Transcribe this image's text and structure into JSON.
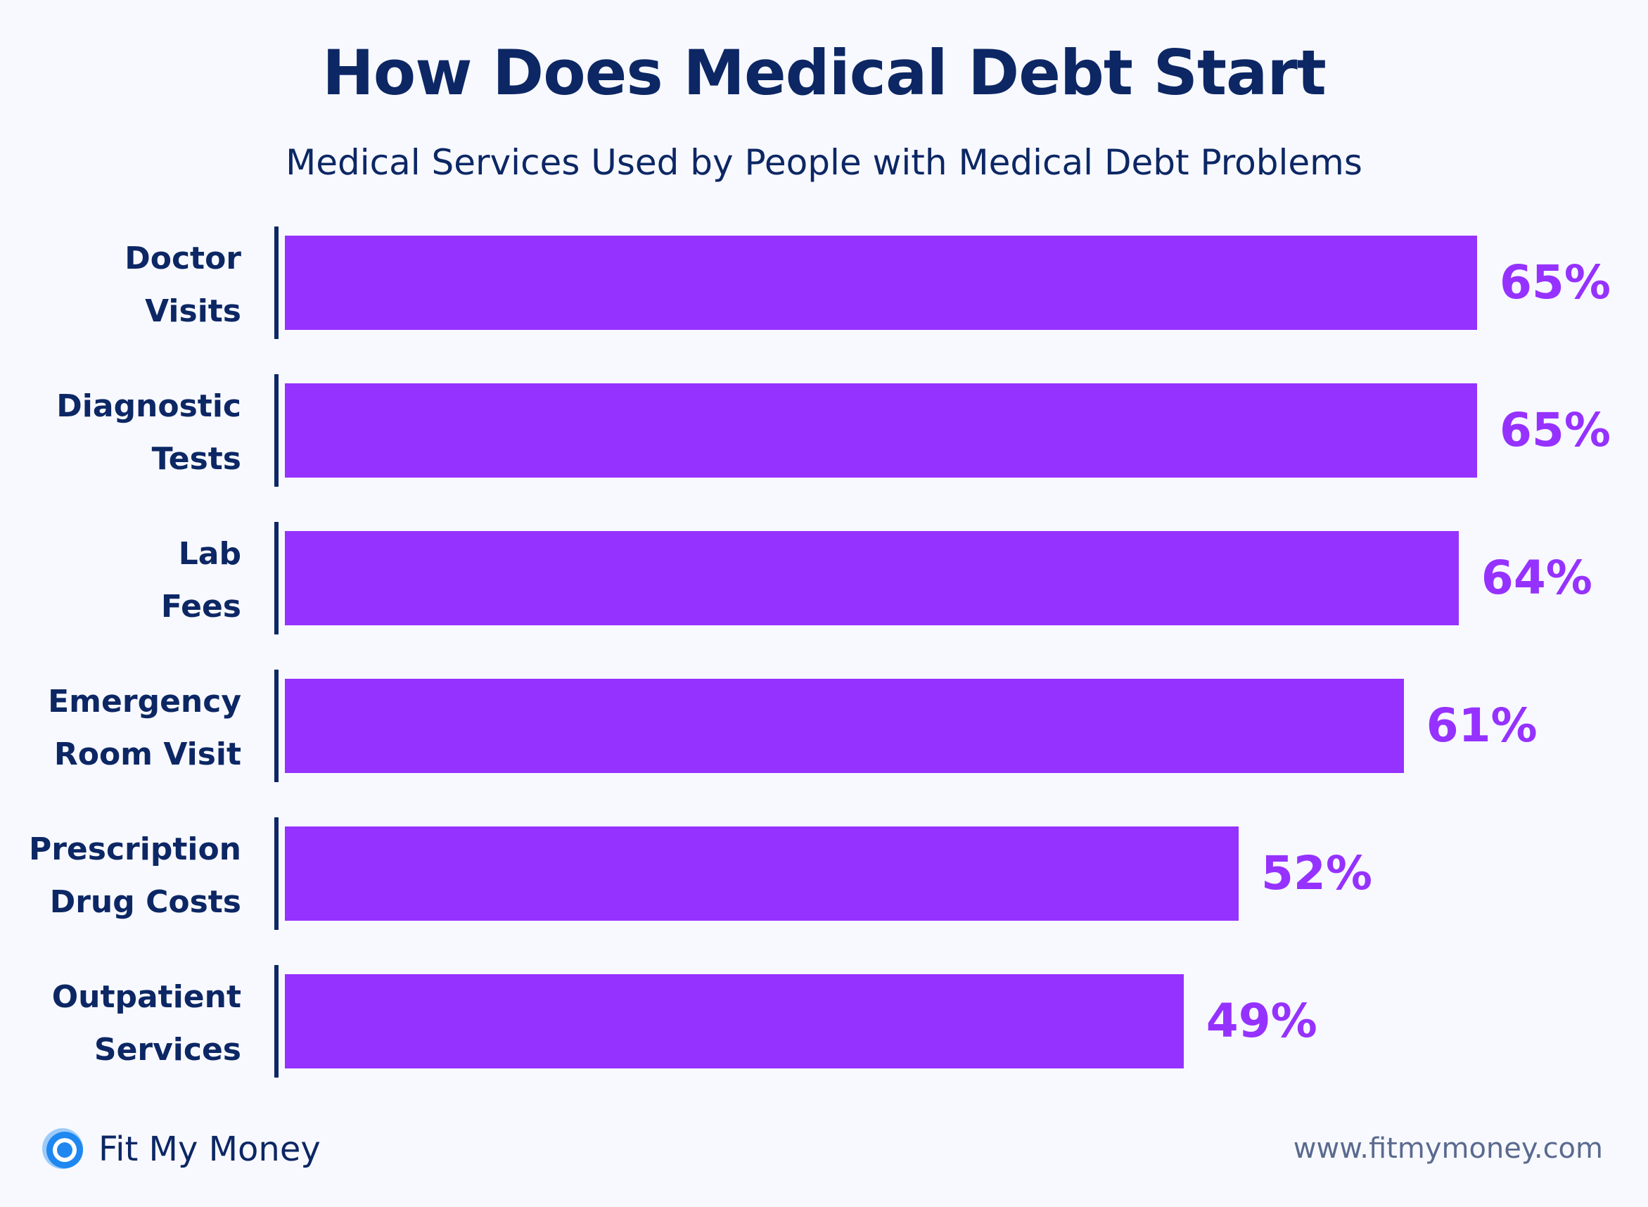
{
  "chart_data": {
    "type": "bar",
    "orientation": "horizontal",
    "title": "How Does Medical Debt Start",
    "subtitle": "Medical Services Used by People with Medical Debt Problems",
    "categories": [
      [
        "Doctor",
        "Visits"
      ],
      [
        "Diagnostic",
        "Tests"
      ],
      [
        "Lab",
        "Fees"
      ],
      [
        "Emergency",
        "Room Visit"
      ],
      [
        "Prescription",
        "Drug Costs"
      ],
      [
        "Outpatient",
        "Services"
      ]
    ],
    "values": [
      65,
      65,
      64,
      61,
      52,
      49
    ],
    "value_labels": [
      "65%",
      "65%",
      "64%",
      "61%",
      "52%",
      "49%"
    ],
    "unit": "%",
    "xlim": [
      0,
      65
    ],
    "grid": false,
    "legend": "none",
    "bar_color": "#9632FF"
  },
  "footer": {
    "brand_name": "Fit My Money",
    "website": "www.fitmymoney.com",
    "logo_icon": "ring-logo-icon"
  },
  "colors": {
    "navy": "#0C2764",
    "purple": "#9632FF",
    "background": "#F8F9FF",
    "logo_blue": "#1F87F0",
    "logo_light": "#9CCBFA"
  }
}
